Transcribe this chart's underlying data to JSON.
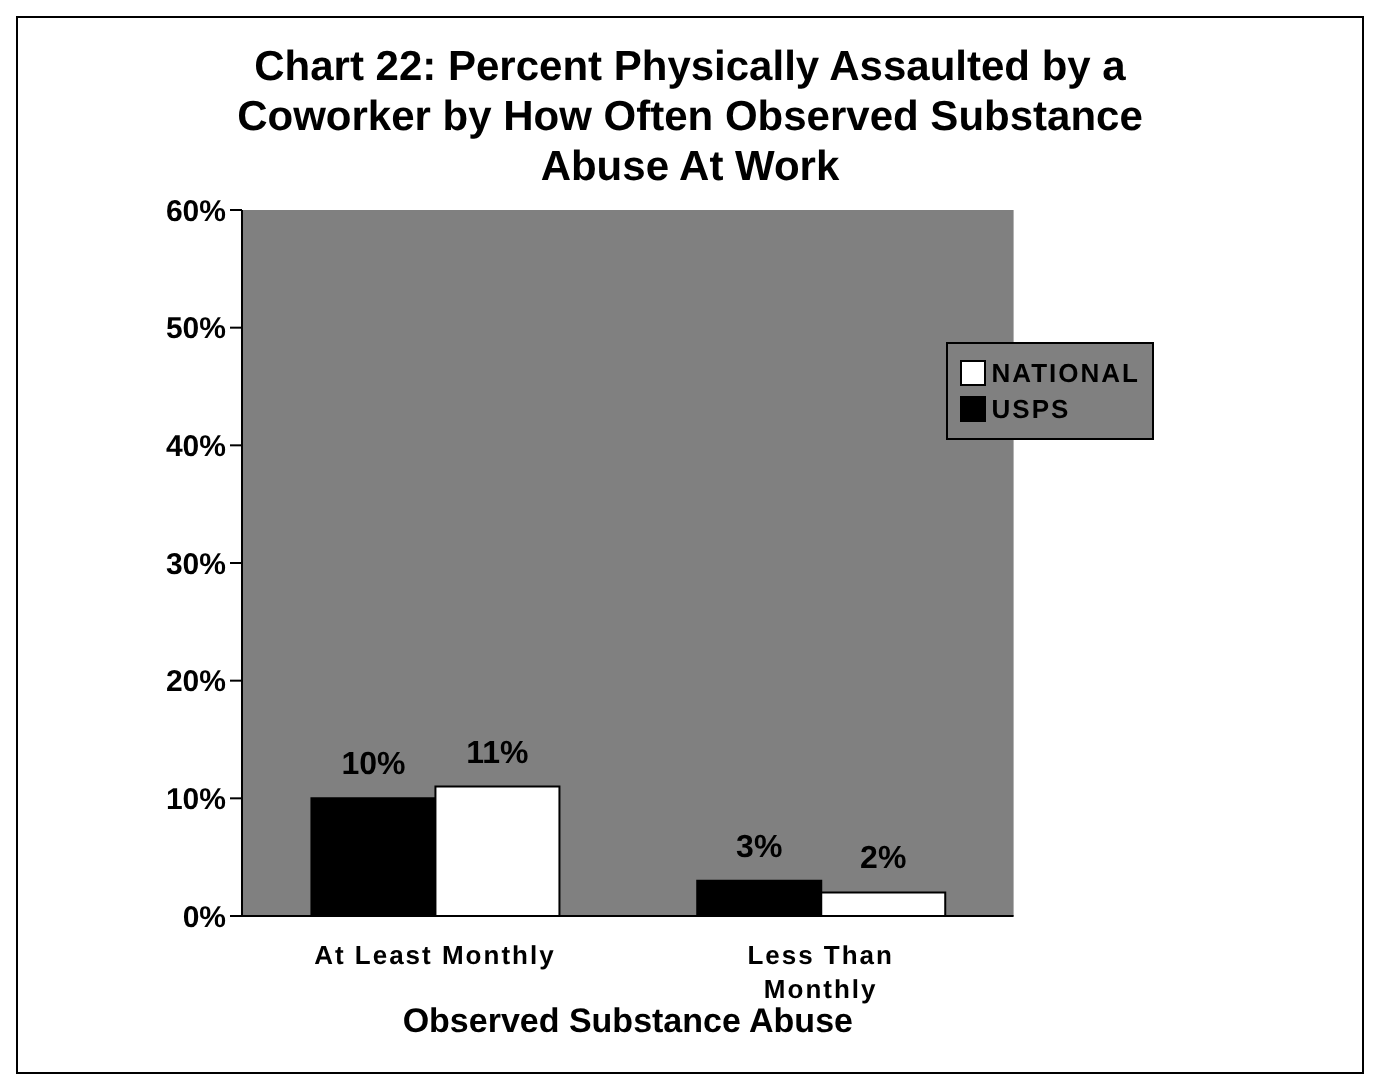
{
  "chart_data": {
    "type": "bar",
    "title": "Chart 22: Percent Physically Assaulted by a Coworker by How Often Observed Substance Abuse At Work",
    "xlabel": "Observed Substance Abuse",
    "categories": [
      "At Least Monthly",
      "Less Than Monthly"
    ],
    "series": [
      {
        "name": "USPS",
        "color": "#000000",
        "values": [
          10,
          3
        ],
        "value_labels": [
          "10%",
          "3%"
        ]
      },
      {
        "name": "NATIONAL",
        "color": "#ffffff",
        "values": [
          11,
          2
        ],
        "value_labels": [
          "11%",
          "2%"
        ]
      }
    ],
    "ylim": [
      0,
      60
    ],
    "yticks": [
      {
        "value": 0,
        "label": "0%"
      },
      {
        "value": 10,
        "label": "10%"
      },
      {
        "value": 20,
        "label": "20%"
      },
      {
        "value": 30,
        "label": "30%"
      },
      {
        "value": 40,
        "label": "40%"
      },
      {
        "value": 50,
        "label": "50%"
      },
      {
        "value": 60,
        "label": "60%"
      }
    ],
    "grid": false,
    "legend": "top right"
  }
}
